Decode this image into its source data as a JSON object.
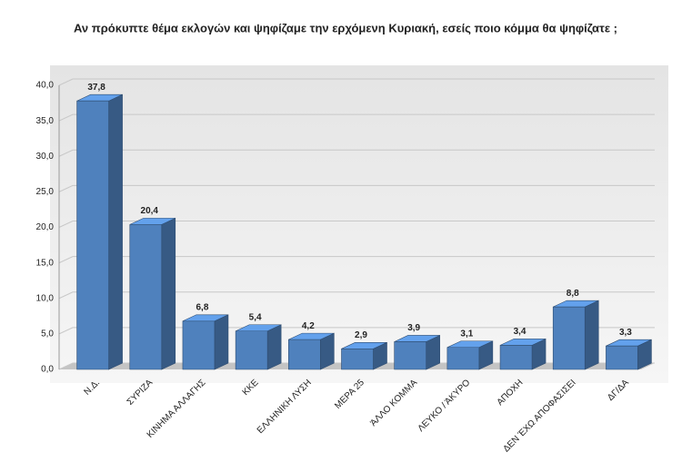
{
  "chart_data": {
    "type": "bar3d",
    "title": "Αν πρόκυπτε θέμα εκλογών και ψηφίζαμε την ερχόμενη Κυριακή, εσείς ποιο κόμμα θα ψηφίζατε ;",
    "categories": [
      "Ν.Δ.",
      "ΣΥΡΙΖΑ",
      "ΚΙΝΗΜΑ ΑΛΛΑΓΗΣ",
      "ΚΚΕ",
      "ΕΛΛΗΝΙΚΗ ΛΥΣΗ",
      "ΜΕΡΑ 25",
      "ΆΛΛΟ ΚΟΜΜΑ",
      "ΛΕΥΚΟ / ΆΚΥΡΟ",
      "ΑΠΟΧΗ",
      "ΔΕΝ ΈΧΩ ΑΠΟΦΑΣΙΣΕΙ",
      "ΔΓ/ΔΑ"
    ],
    "values": [
      37.8,
      20.4,
      6.8,
      5.4,
      4.2,
      2.9,
      3.9,
      3.1,
      3.4,
      8.8,
      3.3
    ],
    "value_labels": [
      "37,8",
      "20,4",
      "6,8",
      "5,4",
      "4,2",
      "2,9",
      "3,9",
      "3,1",
      "3,4",
      "8,8",
      "3,3"
    ],
    "color": "#4f81bd",
    "ylim": [
      0,
      40
    ],
    "yticks": [
      {
        "value": 0,
        "label": "0,0"
      },
      {
        "value": 5,
        "label": "5,0"
      },
      {
        "value": 10,
        "label": "10,0"
      },
      {
        "value": 15,
        "label": "15,0"
      },
      {
        "value": 20,
        "label": "20,0"
      },
      {
        "value": 25,
        "label": "25,0"
      },
      {
        "value": 30,
        "label": "30,0"
      },
      {
        "value": 35,
        "label": "35,0"
      },
      {
        "value": 40,
        "label": "40,0"
      }
    ],
    "grid": true
  }
}
